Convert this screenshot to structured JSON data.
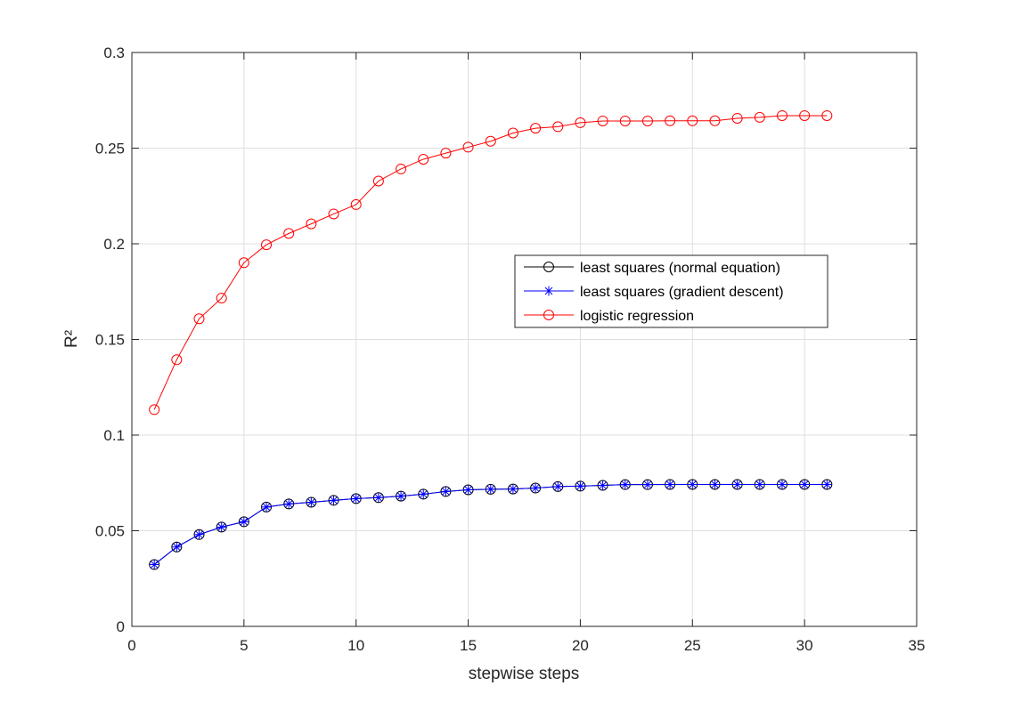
{
  "chart_data": {
    "type": "line",
    "title": "",
    "xlabel": "stepwise steps",
    "ylabel": "R²",
    "xlim": [
      0,
      35
    ],
    "ylim": [
      0,
      0.3
    ],
    "xticks": [
      "0",
      "5",
      "10",
      "15",
      "20",
      "25",
      "30",
      "35"
    ],
    "yticks": [
      "0",
      "0.05",
      "0.1",
      "0.15",
      "0.2",
      "0.25",
      "0.3"
    ],
    "grid": true,
    "legend_position": "center-right",
    "x": [
      1,
      2,
      3,
      4,
      5,
      6,
      7,
      8,
      9,
      10,
      11,
      12,
      13,
      14,
      15,
      16,
      17,
      18,
      19,
      20,
      21,
      22,
      23,
      24,
      25,
      26,
      27,
      28,
      29,
      30,
      31
    ],
    "series": [
      {
        "name": "least squares (normal equation)",
        "color": "#000000",
        "marker": "circle",
        "values": [
          0.0323,
          0.0415,
          0.048,
          0.0519,
          0.0547,
          0.0624,
          0.064,
          0.0649,
          0.0659,
          0.0668,
          0.0673,
          0.0681,
          0.0691,
          0.0705,
          0.0714,
          0.0717,
          0.0718,
          0.0723,
          0.0731,
          0.0733,
          0.0737,
          0.0741,
          0.0741,
          0.0742,
          0.0742,
          0.0742,
          0.0742,
          0.0742,
          0.0742,
          0.0742,
          0.0742
        ]
      },
      {
        "name": "least squares (gradient descent)",
        "color": "#0000ff",
        "marker": "asterisk",
        "values": [
          0.0323,
          0.0415,
          0.048,
          0.0519,
          0.0547,
          0.0624,
          0.064,
          0.0649,
          0.0659,
          0.0668,
          0.0673,
          0.0681,
          0.0691,
          0.0705,
          0.0714,
          0.0717,
          0.0718,
          0.0723,
          0.0731,
          0.0733,
          0.0737,
          0.0741,
          0.0741,
          0.0742,
          0.0742,
          0.0742,
          0.0742,
          0.0742,
          0.0742,
          0.0742,
          0.0742
        ]
      },
      {
        "name": "logistic regression",
        "color": "#ff0000",
        "marker": "circle",
        "values": [
          0.1133,
          0.1394,
          0.1608,
          0.1716,
          0.1901,
          0.1995,
          0.2054,
          0.2104,
          0.2156,
          0.2205,
          0.2328,
          0.2391,
          0.2442,
          0.2474,
          0.2505,
          0.2536,
          0.2579,
          0.2604,
          0.2612,
          0.2633,
          0.2642,
          0.2642,
          0.2642,
          0.2643,
          0.2643,
          0.2643,
          0.2656,
          0.2661,
          0.267,
          0.267,
          0.267
        ]
      }
    ]
  }
}
